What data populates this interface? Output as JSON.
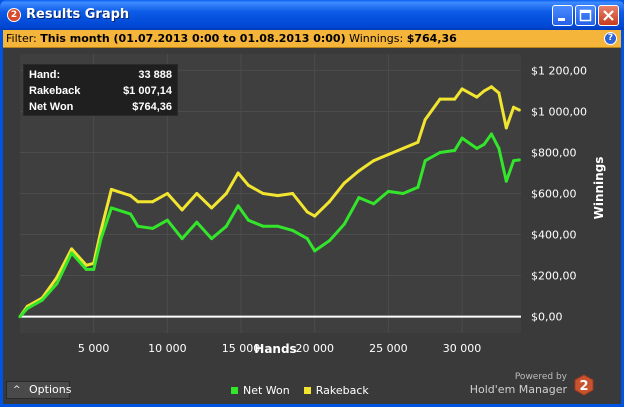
{
  "window": {
    "title": "Results Graph",
    "app_badge": "2"
  },
  "filter": {
    "label": "Filter:",
    "value": "This month (01.07.2013 0:00 to 01.08.2013 0:00)",
    "winnings_label": "Winnings:",
    "winnings_value": "$764,36",
    "help": "?"
  },
  "infobox": {
    "hand_label": "Hand:",
    "hand_value": "33 888",
    "rakeback_label": "Rakeback",
    "rakeback_value": "$1 007,14",
    "netwon_label": "Net Won",
    "netwon_value": "$764,36"
  },
  "options": {
    "label": "Options",
    "chevron": "^"
  },
  "legend": {
    "net_won": "Net Won",
    "net_won_color": "#33E52B",
    "rakeback": "Rakeback",
    "rakeback_color": "#F2E530"
  },
  "powered": {
    "line1": "Powered by",
    "line2": "Hold'em Manager",
    "badge": "2"
  },
  "chart_data": {
    "type": "line",
    "xlabel": "Hands",
    "ylabel": "Winnings",
    "xlim": [
      0,
      34000
    ],
    "ylim": [
      -80,
      1280
    ],
    "x_ticks": [
      "5 000",
      "10 000",
      "15 000",
      "20 000",
      "25 000",
      "30 000"
    ],
    "x_tick_values": [
      5000,
      10000,
      15000,
      20000,
      25000,
      30000
    ],
    "y_ticks": [
      "$0,00",
      "$200,00",
      "$400,00",
      "$600,00",
      "$800,00",
      "$1 000,00",
      "$1 200,00"
    ],
    "y_tick_values": [
      0,
      200,
      400,
      600,
      800,
      1000,
      1200
    ],
    "series": [
      {
        "name": "Net Won",
        "color": "#33E52B",
        "x": [
          0,
          500,
          1500,
          2500,
          3500,
          4500,
          5000,
          5500,
          6200,
          7500,
          8000,
          9000,
          10000,
          11000,
          12000,
          13000,
          14000,
          14800,
          15500,
          16500,
          17500,
          18500,
          19500,
          20000,
          21000,
          22000,
          23000,
          24000,
          25000,
          26000,
          27000,
          27500,
          28500,
          29500,
          30000,
          31000,
          31500,
          32000,
          32500,
          33000,
          33500,
          33888
        ],
        "y": [
          0,
          40,
          80,
          160,
          310,
          230,
          230,
          380,
          530,
          500,
          440,
          430,
          470,
          380,
          460,
          380,
          440,
          540,
          470,
          440,
          440,
          420,
          380,
          320,
          370,
          450,
          580,
          550,
          610,
          600,
          630,
          760,
          800,
          810,
          870,
          820,
          840,
          890,
          820,
          660,
          760,
          764
        ]
      },
      {
        "name": "Rakeback",
        "color": "#F2E530",
        "x": [
          0,
          500,
          1500,
          2500,
          3500,
          4500,
          5000,
          5500,
          6200,
          7500,
          8000,
          9000,
          10000,
          11000,
          12000,
          13000,
          14000,
          14800,
          15500,
          16500,
          17500,
          18500,
          19500,
          20000,
          21000,
          22000,
          23000,
          24000,
          25000,
          26000,
          27000,
          27500,
          28500,
          29500,
          30000,
          31000,
          31500,
          32000,
          32500,
          33000,
          33500,
          33888
        ],
        "y": [
          0,
          50,
          90,
          190,
          330,
          250,
          260,
          420,
          620,
          590,
          560,
          560,
          600,
          520,
          600,
          530,
          600,
          700,
          640,
          600,
          590,
          600,
          510,
          490,
          560,
          650,
          710,
          760,
          790,
          820,
          850,
          960,
          1060,
          1060,
          1110,
          1070,
          1100,
          1120,
          1090,
          920,
          1020,
          1007
        ]
      }
    ]
  }
}
